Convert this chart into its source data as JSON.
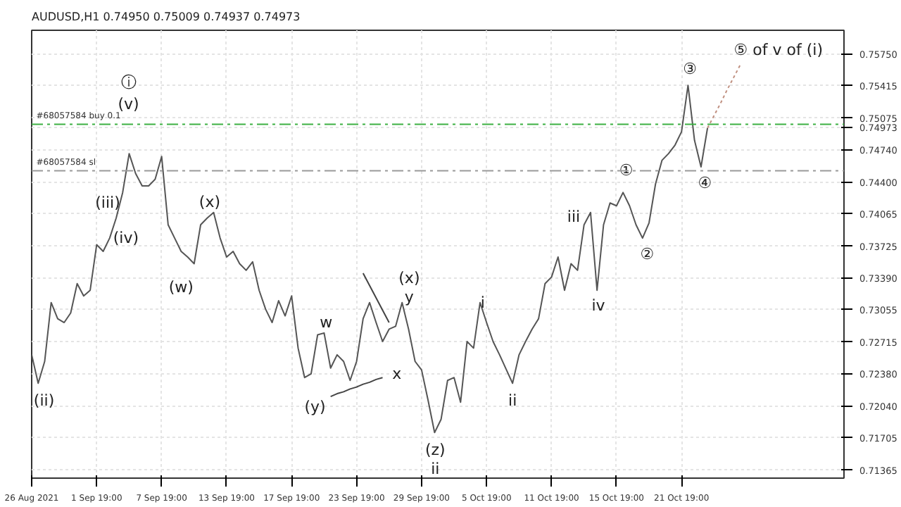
{
  "chart_data": {
    "type": "line",
    "title": "AUDUSD,H1  0.74950 0.75009 0.74937 0.74973",
    "grid": true,
    "ylim": [
      0.7128,
      0.76
    ],
    "categories": [
      "26 Aug 2021",
      null,
      null,
      null,
      null,
      null,
      null,
      null,
      null,
      null,
      "1 Sep 19:00",
      null,
      null,
      null,
      null,
      null,
      null,
      null,
      null,
      null,
      "7 Sep 19:00",
      null,
      null,
      null,
      null,
      null,
      null,
      null,
      null,
      null,
      "13 Sep 19:00",
      null,
      null,
      null,
      null,
      null,
      null,
      null,
      null,
      null,
      "17 Sep 19:00",
      null,
      null,
      null,
      null,
      null,
      null,
      null,
      null,
      null,
      "23 Sep 19:00",
      null,
      null,
      null,
      null,
      null,
      null,
      null,
      null,
      null,
      "29 Sep 19:00",
      null,
      null,
      null,
      null,
      null,
      null,
      null,
      null,
      null,
      "5 Oct 19:00",
      null,
      null,
      null,
      null,
      null,
      null,
      null,
      null,
      null,
      "11 Oct 19:00",
      null,
      null,
      null,
      null,
      null,
      null,
      null,
      null,
      null,
      "15 Oct 19:00",
      null,
      null,
      null,
      null,
      null,
      null,
      null,
      null,
      null,
      "21 Oct 19:00",
      null,
      null,
      null,
      null,
      null,
      null,
      null,
      null,
      null,
      null,
      null,
      null,
      null,
      null,
      null,
      null,
      null,
      null,
      null,
      null,
      null,
      null,
      null,
      null,
      null
    ],
    "yticks": [
      {
        "value": 0.7575,
        "label": "0.75750"
      },
      {
        "value": 0.75415,
        "label": "0.75415"
      },
      {
        "value": 0.75075,
        "label": "0.75075"
      },
      {
        "value": 0.74973,
        "label": "0.74973"
      },
      {
        "value": 0.7474,
        "label": "0.74740"
      },
      {
        "value": 0.744,
        "label": "0.74400"
      },
      {
        "value": 0.74065,
        "label": "0.74065"
      },
      {
        "value": 0.73725,
        "label": "0.73725"
      },
      {
        "value": 0.7339,
        "label": "0.73390"
      },
      {
        "value": 0.73055,
        "label": "0.73055"
      },
      {
        "value": 0.72715,
        "label": "0.72715"
      },
      {
        "value": 0.7238,
        "label": "0.72380"
      },
      {
        "value": 0.7204,
        "label": "0.72040"
      },
      {
        "value": 0.71705,
        "label": "0.71705"
      },
      {
        "value": 0.71365,
        "label": "0.71365"
      }
    ],
    "series": [
      {
        "color": "#555555",
        "line_style": "solid",
        "values": [
          0.7258,
          0.7228,
          0.7251,
          0.7313,
          0.7296,
          0.7292,
          0.7302,
          0.7333,
          0.732,
          0.7326,
          0.7374,
          0.7367,
          0.7381,
          0.7402,
          0.7429,
          0.747,
          0.7449,
          0.7436,
          0.7436,
          0.7443,
          0.7467,
          0.7395,
          0.7381,
          0.7367,
          0.7361,
          0.7354,
          0.7395,
          0.7402,
          0.7408,
          0.7381,
          0.7361,
          0.7367,
          0.7354,
          0.7347,
          0.7356,
          0.7326,
          0.7306,
          0.7292,
          0.7315,
          0.7299,
          0.732,
          0.7265,
          0.7234,
          0.7238,
          0.7279,
          0.7281,
          0.7244,
          0.7258,
          0.7251,
          0.7231,
          0.7251,
          0.7296,
          0.7313,
          0.7292,
          0.7272,
          0.7285,
          0.7288,
          0.7313,
          0.7285,
          0.7251,
          0.7242,
          0.721,
          0.7176,
          0.719,
          0.7231,
          0.7234,
          0.7208,
          0.7272,
          0.7265,
          0.7313,
          0.7292,
          0.7272,
          0.7258,
          0.7243,
          0.7228,
          0.7258,
          0.7272,
          0.7285,
          0.7296,
          0.7333,
          0.734,
          0.7361,
          0.7326,
          0.7354,
          0.7347,
          0.7395,
          0.7408,
          0.7326,
          0.7395,
          0.7418,
          0.7415,
          0.7429,
          0.7415,
          0.7395,
          0.7381,
          0.7397,
          0.7438,
          0.7463,
          0.747,
          0.7479,
          0.7493,
          0.7542,
          0.7484,
          0.7456,
          0.7497,
          null,
          null,
          null,
          null,
          null,
          null,
          null,
          null,
          null,
          null,
          null,
          null,
          null,
          null,
          null,
          null,
          null,
          null,
          null,
          null,
          null
        ]
      },
      {
        "color": "#444444",
        "line_style": "solid",
        "values": [
          null,
          null,
          null,
          null,
          null,
          null,
          null,
          null,
          null,
          null,
          null,
          null,
          null,
          null,
          null,
          null,
          null,
          null,
          null,
          null,
          null,
          null,
          null,
          null,
          null,
          null,
          null,
          null,
          null,
          null,
          null,
          null,
          null,
          null,
          null,
          null,
          null,
          null,
          null,
          null,
          null,
          null,
          null,
          null,
          null,
          null,
          0.7214,
          0.7217,
          0.7219,
          0.7222,
          0.7224,
          0.7227,
          0.7229,
          0.7232,
          0.7234,
          null,
          null,
          null,
          null,
          null,
          null,
          null,
          null,
          null,
          null,
          null,
          null,
          null,
          null,
          null,
          null,
          null,
          null,
          null,
          null,
          null,
          null,
          null,
          null,
          null,
          null,
          null,
          null,
          null,
          null,
          null,
          null,
          null,
          null,
          null,
          null,
          null,
          null,
          null,
          null,
          null,
          null,
          null,
          null,
          null,
          null,
          null,
          null,
          null,
          null,
          null,
          null,
          null,
          null,
          null,
          null,
          null,
          null,
          null,
          null,
          null,
          null,
          null,
          null,
          null,
          null,
          null,
          null,
          null,
          null,
          null
        ]
      },
      {
        "color": "#444444",
        "line_style": "solid",
        "values": [
          null,
          null,
          null,
          null,
          null,
          null,
          null,
          null,
          null,
          null,
          null,
          null,
          null,
          null,
          null,
          null,
          null,
          null,
          null,
          null,
          null,
          null,
          null,
          null,
          null,
          null,
          null,
          null,
          null,
          null,
          null,
          null,
          null,
          null,
          null,
          null,
          null,
          null,
          null,
          null,
          null,
          null,
          null,
          null,
          null,
          null,
          null,
          null,
          null,
          null,
          null,
          0.7344,
          0.7331,
          0.7318,
          0.7305,
          0.7292,
          null,
          null,
          null,
          null,
          null,
          null,
          null,
          null,
          null,
          null,
          null,
          null,
          null,
          null,
          null,
          null,
          null,
          null,
          null,
          null,
          null,
          null,
          null,
          null,
          null,
          null,
          null,
          null,
          null,
          null,
          null,
          null,
          null,
          null,
          null,
          null,
          null,
          null,
          null,
          null,
          null,
          null,
          null,
          null,
          null,
          null,
          null,
          null,
          null,
          null,
          null,
          null,
          null,
          null,
          null,
          null,
          null,
          null,
          null,
          null,
          null,
          null,
          null,
          null,
          null,
          null,
          null,
          null,
          null,
          null
        ]
      },
      {
        "color": "#c09080",
        "line_style": "dotted",
        "values": [
          null,
          null,
          null,
          null,
          null,
          null,
          null,
          null,
          null,
          null,
          null,
          null,
          null,
          null,
          null,
          null,
          null,
          null,
          null,
          null,
          null,
          null,
          null,
          null,
          null,
          null,
          null,
          null,
          null,
          null,
          null,
          null,
          null,
          null,
          null,
          null,
          null,
          null,
          null,
          null,
          null,
          null,
          null,
          null,
          null,
          null,
          null,
          null,
          null,
          null,
          null,
          null,
          null,
          null,
          null,
          null,
          null,
          null,
          null,
          null,
          null,
          null,
          null,
          null,
          null,
          null,
          null,
          null,
          null,
          null,
          null,
          null,
          null,
          null,
          null,
          null,
          null,
          null,
          null,
          null,
          null,
          null,
          null,
          null,
          null,
          null,
          null,
          null,
          null,
          null,
          null,
          null,
          null,
          null,
          null,
          null,
          null,
          null,
          null,
          null,
          null,
          null,
          null,
          null,
          0.7497,
          0.751,
          0.7523,
          0.7537,
          0.755,
          0.7563,
          null,
          null,
          null,
          null,
          null,
          null,
          null,
          null,
          null,
          null,
          null,
          null,
          null,
          null,
          null,
          null
        ]
      }
    ],
    "ref_lines": [
      {
        "axis": "y",
        "value": 0.7501,
        "label": "#68057584 buy 0.1",
        "color": "#3cb043",
        "line_style": "dashed"
      },
      {
        "axis": "y",
        "value": 0.7452,
        "label": "#68057584 sl",
        "color": "#999999",
        "line_style": "dashed"
      }
    ],
    "annotations": [
      "ⓘ",
      "(v)",
      "(iii)",
      "(iv)",
      "(ii)",
      "(x)",
      "(w)",
      "w",
      "(y)",
      "x",
      "(x)",
      "y",
      "(z)",
      "ii",
      "i",
      "ii",
      "iii",
      "iv",
      "①",
      "②",
      "③",
      "④",
      "⑤ of v of (i)"
    ]
  }
}
